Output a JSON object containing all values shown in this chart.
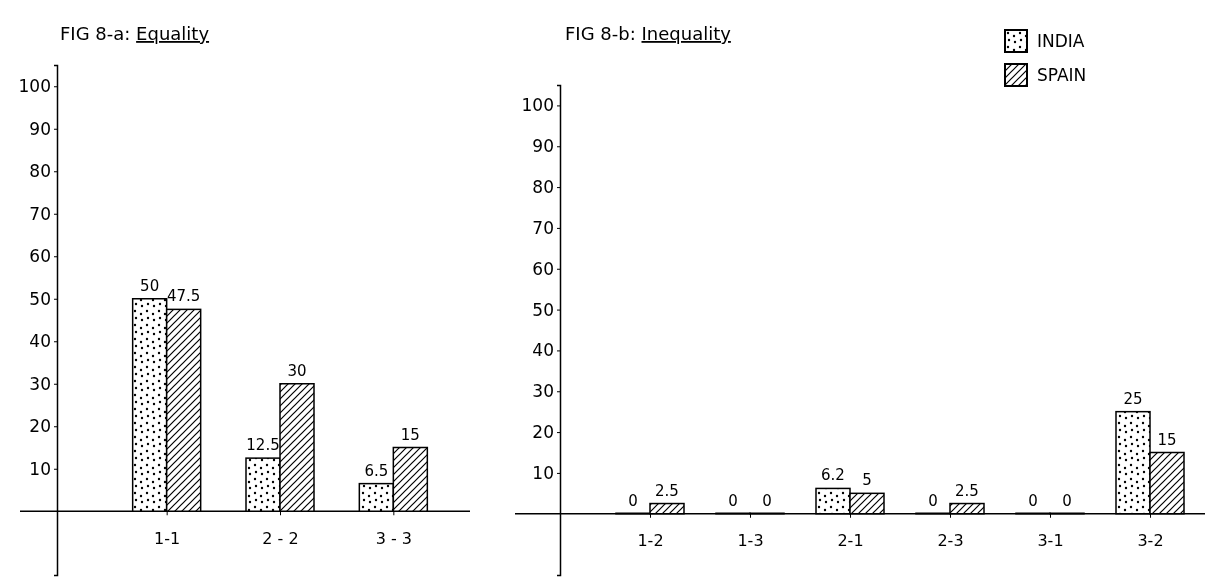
{
  "chart_data": [
    {
      "type": "bar",
      "title": "FIG 8-a: Equality",
      "categories": [
        "1-1",
        "2 - 2",
        "3 - 3"
      ],
      "series": [
        {
          "color": "#000000",
          "values": [
            50,
            12.5,
            6.5
          ]
        },
        {
          "color": "#000000",
          "values": [
            47.5,
            30,
            15
          ]
        }
      ],
      "ylim": [
        -15,
        105
      ],
      "yticks": [
        10,
        20,
        30,
        40,
        50,
        60,
        70,
        80,
        90,
        100
      ],
      "data_labels": true,
      "legend": false
    },
    {
      "type": "bar",
      "title": "FIG 8-b: Inequality",
      "categories": [
        "1-2",
        "1-3",
        "2-1",
        "2-3",
        "3-1",
        "3-2"
      ],
      "series": [
        {
          "name": "INDIA",
          "color": "#000000",
          "values": [
            0,
            0,
            6.2,
            0,
            0,
            25
          ]
        },
        {
          "name": "SPAIN",
          "color": "#000000",
          "values": [
            2.5,
            0,
            5,
            2.5,
            0,
            15
          ]
        }
      ],
      "ylim": [
        -15,
        105
      ],
      "yticks": [
        10,
        20,
        30,
        40,
        50,
        60,
        70,
        80,
        90,
        100
      ],
      "data_labels": true,
      "legend": "top right"
    }
  ]
}
